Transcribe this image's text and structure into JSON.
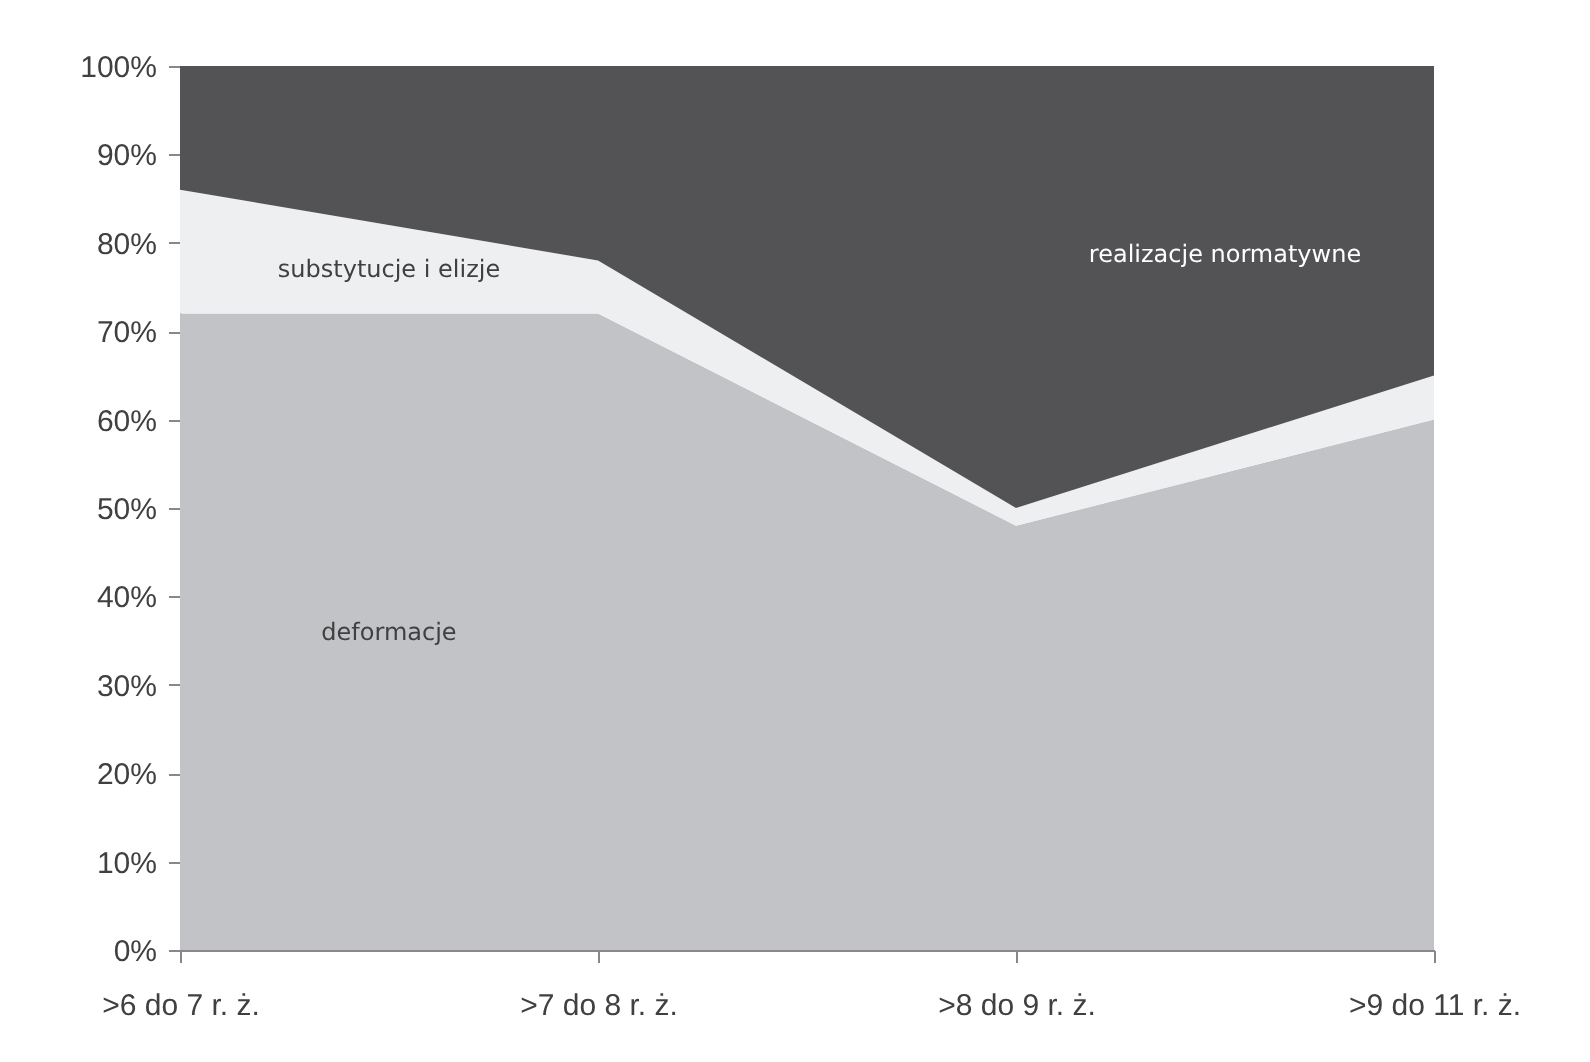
{
  "chart_data": {
    "type": "area",
    "stacked": true,
    "legend": false,
    "grid": false,
    "categories": [
      ">6 do 7 r. ż.",
      ">7 do 8 r. ż.",
      ">8 do 9 r. ż.",
      ">9 do 11 r. ż."
    ],
    "series": [
      {
        "name": "deformacje",
        "color": "#c2c3c7",
        "values": [
          72,
          72,
          48,
          60
        ]
      },
      {
        "name": "substytucje i elizje",
        "color": "#eeeff1",
        "values": [
          14,
          6,
          2,
          5
        ]
      },
      {
        "name": "realizacje normatywne",
        "color": "#535356",
        "values": [
          14,
          22,
          50,
          35
        ]
      }
    ],
    "ylim": [
      0,
      100
    ],
    "yticks": [
      {
        "value": 0,
        "label": "0%"
      },
      {
        "value": 10,
        "label": "10%"
      },
      {
        "value": 20,
        "label": "20%"
      },
      {
        "value": 30,
        "label": "30%"
      },
      {
        "value": 40,
        "label": "40%"
      },
      {
        "value": 50,
        "label": "50%"
      },
      {
        "value": 60,
        "label": "60%"
      },
      {
        "value": 70,
        "label": "70%"
      },
      {
        "value": 80,
        "label": "80%"
      },
      {
        "value": 90,
        "label": "90%"
      },
      {
        "value": 100,
        "label": "100%"
      }
    ]
  }
}
